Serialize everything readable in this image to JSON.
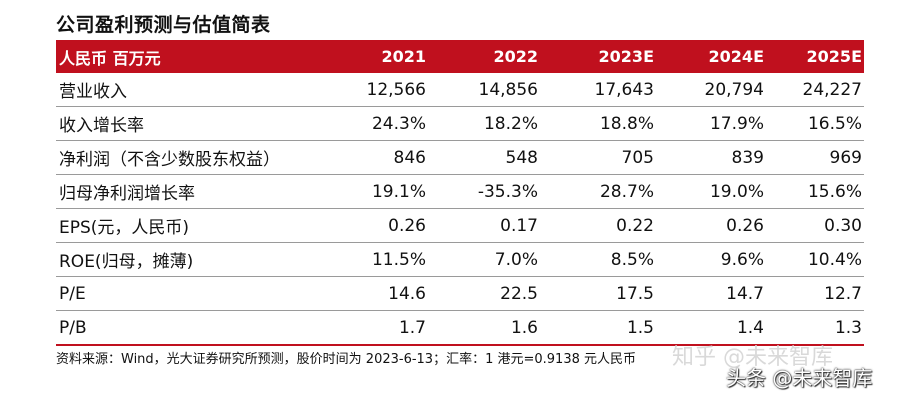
{
  "title": "公司盈利预测与估值简表",
  "table": {
    "header": [
      "人民币 百万元",
      "2021",
      "2022",
      "2023E",
      "2024E",
      "2025E"
    ],
    "rows": [
      [
        "营业收入",
        "12,566",
        "14,856",
        "17,643",
        "20,794",
        "24,227"
      ],
      [
        "收入增长率",
        "24.3%",
        "18.2%",
        "18.8%",
        "17.9%",
        "16.5%"
      ],
      [
        "净利润（不含少数股东权益）",
        "846",
        "548",
        "705",
        "839",
        "969"
      ],
      [
        "归母净利润增长率",
        "19.1%",
        "-35.3%",
        "28.7%",
        "19.0%",
        "15.6%"
      ],
      [
        "EPS(元，人民币)",
        "0.26",
        "0.17",
        "0.22",
        "0.26",
        "0.30"
      ],
      [
        "ROE(归母，摊薄)",
        "11.5%",
        "7.0%",
        "8.5%",
        "9.6%",
        "10.4%"
      ],
      [
        "P/E",
        "14.6",
        "22.5",
        "17.5",
        "14.7",
        "12.7"
      ],
      [
        "P/B",
        "1.7",
        "1.6",
        "1.5",
        "1.4",
        "1.3"
      ]
    ]
  },
  "source": "资料来源：Wind，光大证券研究所预测，股价时间为 2023-6-13；汇率：1 港元=0.9138 元人民币",
  "watermarks": {
    "faint": "知乎 @未来智库",
    "main": "头条 @未来智库"
  },
  "colors": {
    "header_bg": "#c0101e",
    "header_text": "#ffffff",
    "row_divider": "#9a9a9a"
  }
}
